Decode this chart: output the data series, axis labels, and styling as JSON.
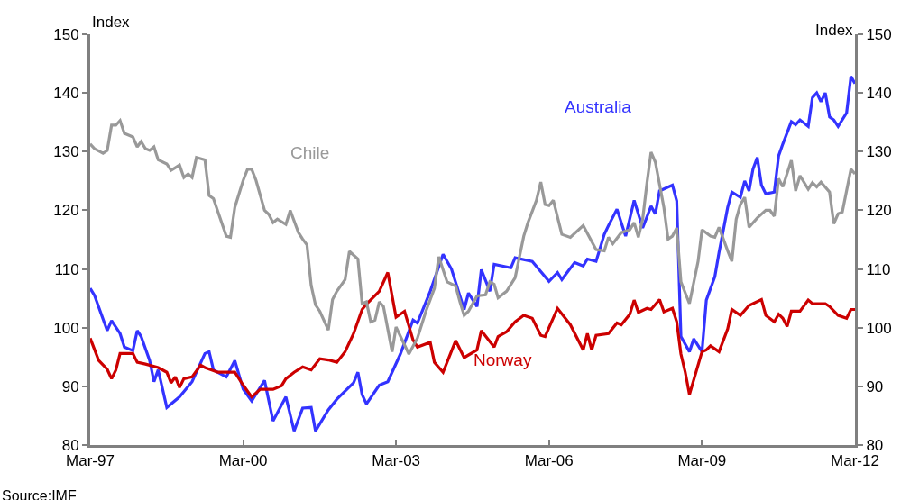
{
  "chart_data": {
    "type": "line",
    "ylabel": "Index",
    "y2label": "Index",
    "xlim": [
      "1997-03",
      "2012-03"
    ],
    "xticks": [
      {
        "value": "1997-03",
        "label": "Mar-97"
      },
      {
        "value": "2000-03",
        "label": "Mar-00"
      },
      {
        "value": "2003-03",
        "label": "Mar-03"
      },
      {
        "value": "2006-03",
        "label": "Mar-06"
      },
      {
        "value": "2009-03",
        "label": "Mar-09"
      },
      {
        "value": "2012-03",
        "label": "Mar-12"
      }
    ],
    "ylim": [
      80,
      150
    ],
    "yticks": [
      80,
      90,
      100,
      110,
      120,
      130,
      140,
      150
    ],
    "y2lim": [
      80,
      150
    ],
    "y2ticks": [
      80,
      90,
      100,
      110,
      120,
      130,
      140,
      150
    ],
    "grid": false,
    "legend": false,
    "marker": "none",
    "line_style": "solid",
    "annotations": [
      "Source:IMF"
    ],
    "series": [
      {
        "name": "Australia",
        "color": "#3333ff",
        "x": [
          "1997-03",
          "1997-04",
          "1997-07",
          "1997-08",
          "1997-10",
          "1997-11",
          "1998-01",
          "1998-02",
          "1998-03",
          "1998-05",
          "1998-06",
          "1998-07",
          "1998-09",
          "1998-12",
          "1999-03",
          "1999-06",
          "1999-07",
          "1999-08",
          "1999-11",
          "2000-01",
          "2000-03",
          "2000-05",
          "2000-08",
          "2000-10",
          "2001-01",
          "2001-03",
          "2001-05",
          "2001-07",
          "2001-08",
          "2001-11",
          "2002-01",
          "2002-05",
          "2002-06",
          "2002-07",
          "2002-08",
          "2002-11",
          "2003-01",
          "2003-04",
          "2003-07",
          "2003-08",
          "2003-11",
          "2004-02",
          "2004-04",
          "2004-07",
          "2004-08",
          "2004-10",
          "2004-11",
          "2005-01",
          "2005-02",
          "2005-06",
          "2005-07",
          "2005-11",
          "2006-03",
          "2006-05",
          "2006-06",
          "2006-09",
          "2006-11",
          "2006-12",
          "2007-02",
          "2007-04",
          "2007-05",
          "2007-07",
          "2007-09",
          "2007-11",
          "2008-01",
          "2008-03",
          "2008-04",
          "2008-05",
          "2008-08",
          "2008-09",
          "2008-10",
          "2008-12",
          "2009-01",
          "2009-03",
          "2009-04",
          "2009-06",
          "2009-07",
          "2009-09",
          "2009-10",
          "2009-12",
          "2010-01",
          "2010-02",
          "2010-03",
          "2010-04",
          "2010-05",
          "2010-06",
          "2010-08",
          "2010-09",
          "2010-10",
          "2010-12",
          "2011-01",
          "2011-02",
          "2011-04",
          "2011-05",
          "2011-06",
          "2011-07",
          "2011-08",
          "2011-09",
          "2011-10",
          "2011-11",
          "2012-01",
          "2012-02",
          "2012-03"
        ],
        "values": [
          106.7,
          105.5,
          99.5,
          101.2,
          99,
          96.7,
          96.1,
          99.5,
          98.5,
          94.4,
          90.8,
          92.8,
          86.4,
          88.2,
          90.8,
          95.6,
          95.9,
          92.8,
          91.6,
          94.4,
          89.5,
          87.5,
          91,
          84.1,
          88.2,
          82.4,
          86.3,
          86.4,
          82.4,
          86,
          87.8,
          90.6,
          92.4,
          88.6,
          87,
          90.2,
          90.8,
          95.5,
          101.3,
          100.8,
          106.2,
          112.5,
          110,
          103.1,
          105.9,
          103.6,
          109.9,
          106.2,
          110.8,
          110.2,
          111.9,
          111.3,
          107.9,
          109.4,
          108.2,
          111.1,
          110.5,
          111.7,
          111.3,
          115.9,
          117.4,
          120.2,
          115.6,
          121.7,
          117,
          120.7,
          119.4,
          123.3,
          124.3,
          121.6,
          98.5,
          95.9,
          98.1,
          95.9,
          104.7,
          108.7,
          112.8,
          120.5,
          123.1,
          122.2,
          125,
          123.3,
          127,
          129,
          124.3,
          122.8,
          123.1,
          129.3,
          131.3,
          135.1,
          134.6,
          135.4,
          134.3,
          139.2,
          140,
          138.5,
          140,
          135.9,
          135.4,
          134.3,
          136.6,
          142.8,
          141.6
        ]
      },
      {
        "name": "Norway",
        "color": "#cc0000",
        "x": [
          "1997-03",
          "1997-05",
          "1997-07",
          "1997-08",
          "1997-09",
          "1997-10",
          "1998-01",
          "1998-02",
          "1998-04",
          "1998-07",
          "1998-09",
          "1998-10",
          "1998-11",
          "1998-12",
          "1999-01",
          "1999-03",
          "1999-05",
          "1999-06",
          "1999-09",
          "2000-01",
          "2000-03",
          "2000-05",
          "2000-07",
          "2000-10",
          "2000-12",
          "2001-01",
          "2001-03",
          "2001-05",
          "2001-07",
          "2001-09",
          "2001-11",
          "2002-01",
          "2002-03",
          "2002-05",
          "2002-07",
          "2002-08",
          "2002-11",
          "2003-01",
          "2003-03",
          "2003-05",
          "2003-07",
          "2003-08",
          "2003-11",
          "2003-12",
          "2004-02",
          "2004-05",
          "2004-07",
          "2004-10",
          "2004-11",
          "2005-02",
          "2005-03",
          "2005-05",
          "2005-07",
          "2005-09",
          "2005-11",
          "2006-01",
          "2006-02",
          "2006-05",
          "2006-08",
          "2006-11",
          "2006-12",
          "2007-01",
          "2007-02",
          "2007-05",
          "2007-07",
          "2007-08",
          "2007-10",
          "2007-11",
          "2007-12",
          "2008-02",
          "2008-03",
          "2008-05",
          "2008-06",
          "2008-08",
          "2008-09",
          "2008-10",
          "2008-11",
          "2008-12",
          "2009-03",
          "2009-04",
          "2009-05",
          "2009-07",
          "2009-09",
          "2009-10",
          "2009-12",
          "2010-02",
          "2010-05",
          "2010-06",
          "2010-08",
          "2010-09",
          "2010-10",
          "2010-11",
          "2010-12",
          "2011-02",
          "2011-04",
          "2011-05",
          "2011-08",
          "2011-09",
          "2011-11",
          "2012-01",
          "2012-02",
          "2012-03"
        ],
        "values": [
          98.2,
          94.4,
          92.9,
          91.3,
          92.8,
          95.6,
          95.6,
          94.1,
          93.8,
          93.2,
          92.4,
          90.6,
          91.6,
          89.8,
          91.3,
          91.6,
          93.6,
          93.2,
          92.4,
          92.4,
          90.2,
          88.2,
          89.5,
          89.5,
          90.1,
          91.3,
          92.4,
          93.3,
          92.8,
          94.7,
          94.5,
          94.1,
          95.9,
          99,
          103.1,
          104,
          106.2,
          109.4,
          101.8,
          102.8,
          97.9,
          96.7,
          97.5,
          94.1,
          92.4,
          97.8,
          94.9,
          96.2,
          99.5,
          96.7,
          98.5,
          99.3,
          101,
          102.1,
          101.6,
          98.7,
          98.5,
          103.3,
          100.5,
          96.2,
          99,
          96.2,
          98.7,
          99,
          100.8,
          100.5,
          102.3,
          104.7,
          102.6,
          103.3,
          103.1,
          104.8,
          102.7,
          103.3,
          101,
          95.5,
          92.4,
          88.6,
          95.9,
          96.2,
          96.9,
          95.9,
          99.8,
          103.1,
          102.1,
          103.8,
          104.8,
          102.1,
          101,
          102.3,
          101.6,
          100.2,
          102.8,
          102.8,
          104.7,
          104.1,
          104.1,
          103.6,
          102.1,
          101.6,
          103.1,
          103.1
        ]
      },
      {
        "name": "Chile",
        "color": "#999999",
        "x": [
          "1997-03",
          "1997-04",
          "1997-06",
          "1997-07",
          "1997-08",
          "1997-09",
          "1997-10",
          "1997-11",
          "1998-01",
          "1998-02",
          "1998-03",
          "1998-04",
          "1998-05",
          "1998-06",
          "1998-07",
          "1998-09",
          "1998-10",
          "1998-12",
          "1999-01",
          "1999-02",
          "1999-03",
          "1999-04",
          "1999-06",
          "1999-07",
          "1999-08",
          "1999-11",
          "1999-12",
          "2000-01",
          "2000-03",
          "2000-04",
          "2000-05",
          "2000-06",
          "2000-08",
          "2000-09",
          "2000-10",
          "2000-11",
          "2001-01",
          "2001-02",
          "2001-04",
          "2001-05",
          "2001-06",
          "2001-07",
          "2001-08",
          "2001-09",
          "2001-11",
          "2001-12",
          "2002-01",
          "2002-03",
          "2002-04",
          "2002-06",
          "2002-07",
          "2002-08",
          "2002-09",
          "2002-10",
          "2002-11",
          "2002-12",
          "2003-02",
          "2003-03",
          "2003-06",
          "2003-08",
          "2003-10",
          "2003-12",
          "2004-01",
          "2004-03",
          "2004-05",
          "2004-06",
          "2004-07",
          "2004-08",
          "2004-10",
          "2004-12",
          "2005-01",
          "2005-02",
          "2005-03",
          "2005-05",
          "2005-07",
          "2005-09",
          "2005-10",
          "2005-12",
          "2006-01",
          "2006-02",
          "2006-03",
          "2006-04",
          "2006-06",
          "2006-08",
          "2006-11",
          "2007-02",
          "2007-04",
          "2007-05",
          "2007-06",
          "2007-08",
          "2007-10",
          "2007-11",
          "2007-12",
          "2008-01",
          "2008-02",
          "2008-03",
          "2008-04",
          "2008-06",
          "2008-07",
          "2008-08",
          "2008-09",
          "2008-10",
          "2008-12",
          "2009-02",
          "2009-03",
          "2009-05",
          "2009-06",
          "2009-07",
          "2009-09",
          "2009-10",
          "2009-11",
          "2009-12",
          "2010-01",
          "2010-02",
          "2010-04",
          "2010-06",
          "2010-07",
          "2010-08",
          "2010-09",
          "2010-10",
          "2010-12",
          "2011-01",
          "2011-02",
          "2011-04",
          "2011-05",
          "2011-06",
          "2011-07",
          "2011-09",
          "2011-10",
          "2011-11",
          "2011-12",
          "2012-02",
          "2012-03"
        ],
        "values": [
          131.3,
          130.5,
          129.7,
          130.2,
          134.5,
          134.5,
          135.3,
          133.1,
          132.5,
          130.8,
          131.7,
          130.5,
          130.2,
          130.8,
          128.6,
          127.9,
          126.8,
          127.7,
          125.6,
          126.2,
          125.6,
          129,
          128.6,
          122.5,
          122,
          115.6,
          115.4,
          120.5,
          125.1,
          127,
          127,
          125.1,
          120,
          119.3,
          117.9,
          118.5,
          117.6,
          120,
          116.2,
          115.1,
          114.1,
          107.2,
          103.9,
          102.8,
          99.6,
          104.8,
          106.2,
          108.2,
          113,
          111.7,
          104.1,
          104.4,
          101,
          101.3,
          104.4,
          103.6,
          95.9,
          100.1,
          95.5,
          98.2,
          102.8,
          106.7,
          112.1,
          107.8,
          107.1,
          104.4,
          102.1,
          102.8,
          105.4,
          105.6,
          107.8,
          107.4,
          105.1,
          106.2,
          108.5,
          115.6,
          117.9,
          121.7,
          124.8,
          121,
          120.8,
          121.7,
          115.9,
          115.4,
          117.4,
          113.3,
          113.1,
          115.4,
          114.3,
          116.2,
          116.7,
          117.9,
          115.4,
          118.5,
          124.7,
          129.9,
          128.2,
          120.5,
          115.1,
          115.6,
          117,
          107.8,
          104.1,
          111.3,
          116.7,
          115.6,
          115.4,
          117.1,
          113.1,
          111.3,
          118.5,
          121,
          122.2,
          117.1,
          118.7,
          120,
          120,
          119,
          125.4,
          124,
          128.5,
          123.3,
          125.9,
          123.6,
          124.7,
          124,
          124.8,
          123.1,
          117.7,
          119.4,
          119.7,
          127,
          126.2
        ]
      }
    ]
  }
}
